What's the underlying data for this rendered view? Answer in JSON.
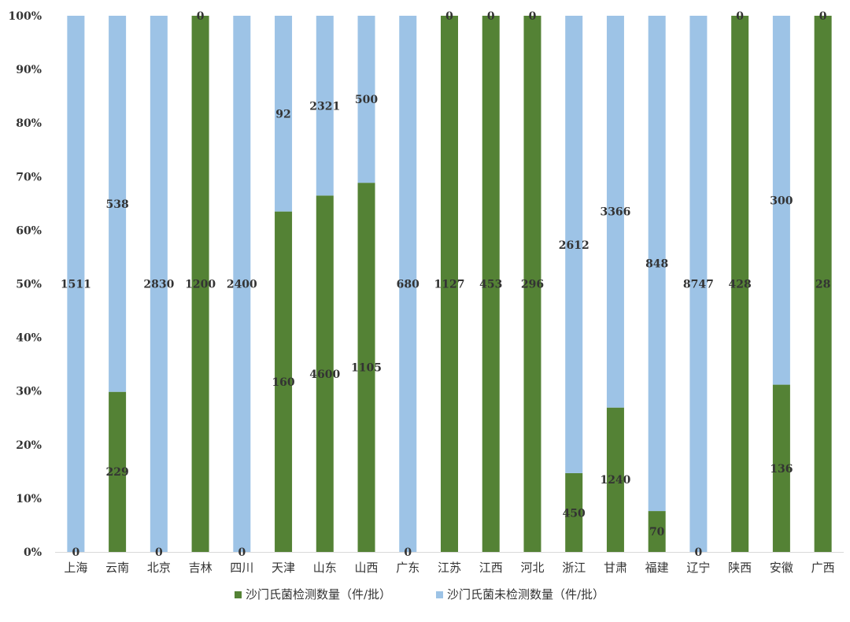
{
  "chart_data": {
    "type": "bar",
    "stacked": true,
    "normalized": true,
    "title": "",
    "xlabel": "",
    "ylabel": "",
    "ylim": [
      0,
      100
    ],
    "y_ticks": [
      "0%",
      "10%",
      "20%",
      "30%",
      "40%",
      "50%",
      "60%",
      "70%",
      "80%",
      "90%",
      "100%"
    ],
    "grid": false,
    "legend_position": "bottom",
    "categories": [
      "上海",
      "云南",
      "北京",
      "吉林",
      "四川",
      "天津",
      "山东",
      "山西",
      "广东",
      "江苏",
      "江西",
      "河北",
      "浙江",
      "甘肃",
      "福建",
      "辽宁",
      "陕西",
      "安徽",
      "广西"
    ],
    "series": [
      {
        "name": "沙门氏菌检测数量（件/批）",
        "color": "#548235",
        "values": [
          0,
          229,
          0,
          1200,
          0,
          160,
          4600,
          1105,
          0,
          1127,
          453,
          296,
          450,
          1240,
          70,
          0,
          428,
          136,
          28
        ]
      },
      {
        "name": "沙门氏菌未检测数量（件/批）",
        "color": "#9DC3E6",
        "values": [
          1511,
          538,
          2830,
          0,
          2400,
          92,
          2321,
          500,
          680,
          0,
          0,
          0,
          2612,
          3366,
          848,
          8747,
          0,
          300,
          0
        ]
      }
    ],
    "data_label_positions": {
      "series_0": [
        0,
        15,
        0,
        50,
        0,
        31.7,
        33.2,
        34.4,
        0,
        50,
        50,
        50,
        7.3,
        13.5,
        3.8,
        0,
        50,
        15.6,
        50
      ],
      "series_1": [
        50,
        64.9,
        50,
        100,
        50,
        81.7,
        83.2,
        84.4,
        50,
        100,
        100,
        100,
        57.3,
        63.5,
        53.8,
        50,
        100,
        65.6,
        100
      ]
    }
  }
}
